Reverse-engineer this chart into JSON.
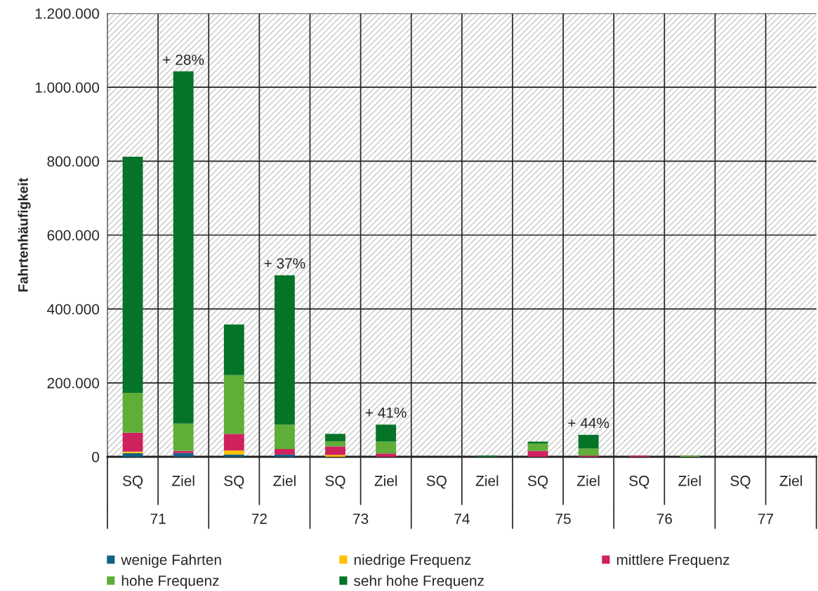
{
  "chart_data": {
    "type": "bar",
    "stacked": true,
    "ylabel": "Fahrtenhäufigkeit",
    "categories": [
      "SQ",
      "Ziel",
      "SQ",
      "Ziel",
      "SQ",
      "Ziel",
      "SQ",
      "Ziel",
      "SQ",
      "Ziel",
      "SQ",
      "Ziel",
      "SQ",
      "Ziel"
    ],
    "series": [
      {
        "name": "wenige Fahrten",
        "color": "#136185",
        "values": [
          10000,
          10000,
          6000,
          6000,
          0,
          0,
          0,
          0,
          0,
          0,
          0,
          0,
          0,
          0
        ]
      },
      {
        "name": "niedrige Frequenz",
        "color": "#ffc000",
        "values": [
          4000,
          0,
          11000,
          0,
          5000,
          0,
          0,
          0,
          0,
          0,
          0,
          0,
          0,
          0
        ]
      },
      {
        "name": "mittlere Frequenz",
        "color": "#d0215f",
        "values": [
          51000,
          6000,
          45000,
          15000,
          23000,
          9000,
          0,
          0,
          16000,
          3400,
          3000,
          0,
          0,
          0
        ]
      },
      {
        "name": "hohe Frequenz",
        "color": "#60ad38",
        "values": [
          108000,
          74000,
          159000,
          66000,
          14000,
          32000,
          0,
          0,
          20000,
          19000,
          0,
          3000,
          0,
          0
        ]
      },
      {
        "name": "sehr hohe Frequenz",
        "color": "#057428",
        "values": [
          639000,
          953000,
          137000,
          404000,
          20000,
          46000,
          0,
          3000,
          5000,
          37000,
          0,
          0,
          0,
          0
        ]
      }
    ],
    "ylim": [
      0,
      1200000
    ],
    "yticks": [
      0,
      {
        "value": 200000,
        "label": "200.000"
      },
      {
        "value": 400000,
        "label": "400.000"
      },
      {
        "value": 600000,
        "label": "600.000"
      },
      {
        "value": 800000,
        "label": "800.000"
      },
      {
        "value": 1000000,
        "label": "1.000.000"
      },
      {
        "value": 1200000,
        "label": "1.200.000"
      }
    ],
    "annotations": [
      {
        "text": "+ 28%",
        "y": 1042000
      },
      {
        "text": "+ 37%",
        "y": 491000
      },
      {
        "text": "+ 41%",
        "y": 87000
      },
      {
        "text": "+ 44%",
        "y": 59000
      },
      "71",
      "72",
      "73",
      "74",
      "75",
      "76",
      "77"
    ],
    "grid": true,
    "legend": "bottom"
  }
}
